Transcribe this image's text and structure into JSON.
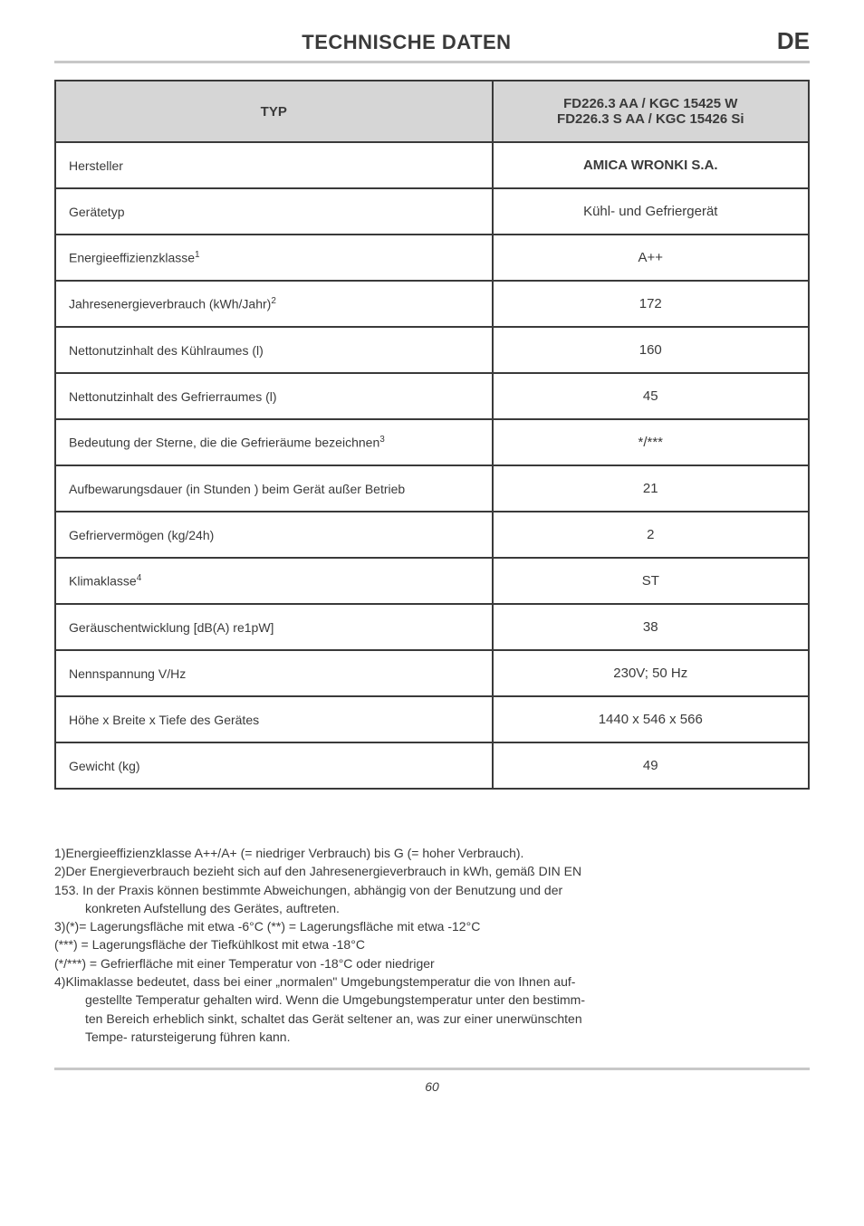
{
  "header": {
    "title": "TECHNISCHE DATEN",
    "lang": "DE"
  },
  "table": {
    "header_left": "TYP",
    "header_right_line1": "FD226.3 AA / KGC 15425 W",
    "header_right_line2": "FD226.3 S AA / KGC 15426 Si",
    "rows": [
      {
        "label": "Hersteller",
        "value": "AMICA WRONKI S.A.",
        "bold": true
      },
      {
        "label": "Gerätetyp",
        "value": "Kühl- und Gefriergerät"
      },
      {
        "label": "Energieeffizienzklasse",
        "sup": "1",
        "value": "A++"
      },
      {
        "label": "Jahresenergieverbrauch (kWh/Jahr)",
        "sup": "2",
        "value": "172"
      },
      {
        "label": "Nettonutzinhalt des Kühlraumes (l)",
        "value": "160"
      },
      {
        "label": "Nettonutzinhalt des Gefrierraumes (l)",
        "value": "45"
      },
      {
        "label": "Bedeutung der Sterne, die die Gefrieräume bezeichnen",
        "sup": "3",
        "value": "*/***"
      },
      {
        "label": "Aufbewarungsdauer (in Stunden ) beim Gerät außer Betrieb",
        "value": "21"
      },
      {
        "label": "Gefriervermögen (kg/24h)",
        "value": "2"
      },
      {
        "label": "Klimaklasse",
        "sup": "4",
        "value": "ST"
      },
      {
        "label": "Geräuschentwicklung [dB(A) re1pW]",
        "value": "38"
      },
      {
        "label": "Nennspannung V/Hz",
        "value": "230V; 50 Hz"
      },
      {
        "label": "Höhe x Breite x Tiefe des Gerätes",
        "value": "1440 x 546 x 566"
      },
      {
        "label": "Gewicht (kg)",
        "value": "49"
      }
    ]
  },
  "footnotes": {
    "l1": "1)Energieeffizienzklasse A++/A+ (= niedriger Verbrauch) bis G (= hoher Verbrauch).",
    "l2": "2)Der Energieverbrauch bezieht sich auf den Jahresenergieverbrauch in kWh, gemäß DIN EN",
    "l3": "153.  In der Praxis können bestimmte Abweichungen, abhängig von der Benutzung und der",
    "l4": "konkreten Aufstellung des Gerätes, auftreten.",
    "l5": "3)(*)= Lagerungsfläche mit etwa -6°C (**) = Lagerungsfläche mit etwa -12°C",
    "l6": "(***) = Lagerungsfläche der Tiefkühlkost mit etwa  -18°C",
    "l7": "(*/***) = Gefrierfläche mit einer Temperatur von -18°C oder niedriger",
    "l8": "4)Klimaklasse bedeutet, dass bei einer „normalen\" Umgebungstemperatur die von Ihnen auf-",
    "l9": "gestellte Temperatur gehalten wird.  Wenn die Umgebungstemperatur  unter den bestimm-",
    "l10": "ten Bereich erheblich sinkt, schaltet das Gerät seltener an, was zur einer  unerwünschten",
    "l11": "Tempe- ratursteigerung führen kann."
  },
  "page_number": "60"
}
